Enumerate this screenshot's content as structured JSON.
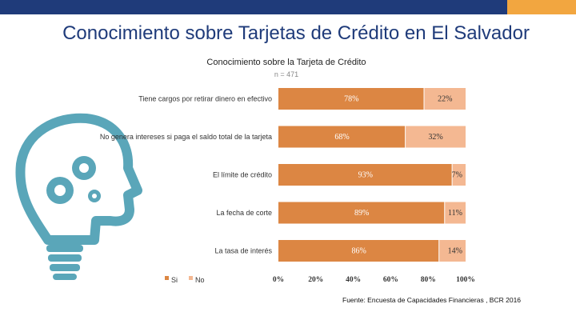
{
  "slide_title": "Conocimiento sobre Tarjetas de Crédito en El Salvador",
  "source": "Fuente: Encuesta de Capacidades Financieras , BCR 2016",
  "colors": {
    "si": "#dc8643",
    "no": "#f4b892",
    "navy": "#1f3b7a",
    "accent": "#f2a640"
  },
  "illustration": {
    "name": "head-gears-lightbulb-icon"
  },
  "chart_data": {
    "type": "bar",
    "orientation": "horizontal",
    "stacked": true,
    "title": "Conocimiento sobre  la Tarjeta de Crédito",
    "subtitle": "n = 471",
    "categories": [
      "Tiene cargos por retirar dinero en efectivo",
      "No genera intereses si paga el saldo total de la tarjeta",
      "El límite de crédito",
      "La fecha de corte",
      "La tasa de interés"
    ],
    "series": [
      {
        "name": "Si",
        "values": [
          78,
          68,
          93,
          89,
          86
        ],
        "labels": [
          "78%",
          "68%",
          "93%",
          "89%",
          "86%"
        ]
      },
      {
        "name": "No",
        "values": [
          22,
          32,
          7,
          11,
          14
        ],
        "labels": [
          "22%",
          "32%",
          "7%",
          "11%",
          "14%"
        ]
      }
    ],
    "xlim": [
      0,
      100
    ],
    "xticks": [
      "0%",
      "20%",
      "40%",
      "60%",
      "80%",
      "100%"
    ],
    "legend": "bottom-left",
    "grid": false
  }
}
